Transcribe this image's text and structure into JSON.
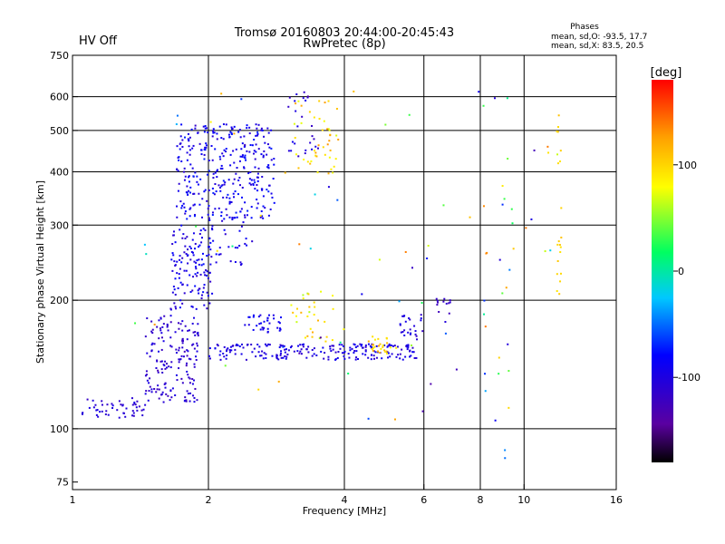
{
  "header": {
    "title_line1": "Tromsø 20160803 20:44:00-20:45:43",
    "title_line2": "RwPretec (8p)",
    "status": "HV Off",
    "status_color": "#cc0000",
    "phases_label": "Phases",
    "phase_o": "mean, sd,O: -93.5, 17.7",
    "phase_x": "mean, sd,X:  83.5, 20.5"
  },
  "chart_data": {
    "type": "scatter",
    "xlabel": "Frequency [MHz]",
    "ylabel": "Stationary phase Virtual Height [km]",
    "x_scale": "log",
    "y_scale": "log",
    "xlim": [
      1,
      16
    ],
    "ylim": [
      72,
      750
    ],
    "x_ticks": [
      1,
      2,
      4,
      6,
      8,
      10,
      16
    ],
    "x_tick_labels": [
      "1",
      "2",
      "4",
      "6",
      "8",
      "10",
      "16"
    ],
    "y_ticks": [
      75,
      100,
      200,
      300,
      400,
      500,
      600,
      750
    ],
    "y_tick_labels": [
      "75",
      "100",
      "200",
      "300",
      "400",
      "500",
      "600",
      "750"
    ],
    "grid": true,
    "colorbar": {
      "label": "[deg]",
      "range": [
        -180,
        180
      ],
      "ticks": [
        100,
        0,
        -100
      ],
      "tick_labels": [
        "100",
        "0",
        "-100"
      ],
      "colormap": [
        "#000000",
        "#5a00a0",
        "#0000ff",
        "#00c8ff",
        "#00ff60",
        "#ffff00",
        "#ffa000",
        "#ff0000"
      ]
    },
    "clusters": [
      {
        "x": [
          1.05,
          1.45
        ],
        "y": [
          105,
          118
        ],
        "phase": [
          -120,
          -95
        ],
        "count": 50
      },
      {
        "x": [
          1.45,
          1.9
        ],
        "y": [
          115,
          185
        ],
        "phase": [
          -125,
          -95
        ],
        "count": 170
      },
      {
        "x": [
          1.65,
          2.05
        ],
        "y": [
          190,
          300
        ],
        "phase": [
          -115,
          -75
        ],
        "count": 130
      },
      {
        "x": [
          1.7,
          2.8
        ],
        "y": [
          310,
          520
        ],
        "phase": [
          -110,
          -70
        ],
        "count": 320
      },
      {
        "x": [
          2.0,
          2.5
        ],
        "y": [
          240,
          310
        ],
        "phase": [
          -110,
          -80
        ],
        "count": 30
      },
      {
        "x": [
          2.0,
          5.8
        ],
        "y": [
          145,
          158
        ],
        "phase": [
          -115,
          -85
        ],
        "count": 210
      },
      {
        "x": [
          2.4,
          2.9
        ],
        "y": [
          168,
          185
        ],
        "phase": [
          -100,
          -80
        ],
        "count": 35
      },
      {
        "x": [
          3.0,
          3.9
        ],
        "y": [
          160,
          210
        ],
        "phase": [
          60,
          120
        ],
        "count": 30
      },
      {
        "x": [
          3.1,
          3.9
        ],
        "y": [
          390,
          600
        ],
        "phase": [
          70,
          130
        ],
        "count": 45
      },
      {
        "x": [
          3.0,
          3.5
        ],
        "y": [
          420,
          620
        ],
        "phase": [
          -120,
          -90
        ],
        "count": 25
      },
      {
        "x": [
          4.5,
          5.3
        ],
        "y": [
          150,
          165
        ],
        "phase": [
          80,
          120
        ],
        "count": 25
      },
      {
        "x": [
          5.3,
          6.0
        ],
        "y": [
          160,
          185
        ],
        "phase": [
          -120,
          -90
        ],
        "count": 25
      },
      {
        "x": [
          6.4,
          6.9
        ],
        "y": [
          185,
          210
        ],
        "phase": [
          -130,
          -110
        ],
        "count": 12
      },
      {
        "x": [
          11.8,
          12.1
        ],
        "y": [
          200,
          600
        ],
        "phase": [
          90,
          110
        ],
        "count": 20
      },
      {
        "x": [
          8.0,
          9.5
        ],
        "y": [
          85,
          600
        ],
        "phase": [
          -120,
          140
        ],
        "count": 25
      },
      {
        "x": [
          1.3,
          12
        ],
        "y": [
          100,
          620
        ],
        "phase": [
          -150,
          150
        ],
        "count": 70
      }
    ]
  }
}
